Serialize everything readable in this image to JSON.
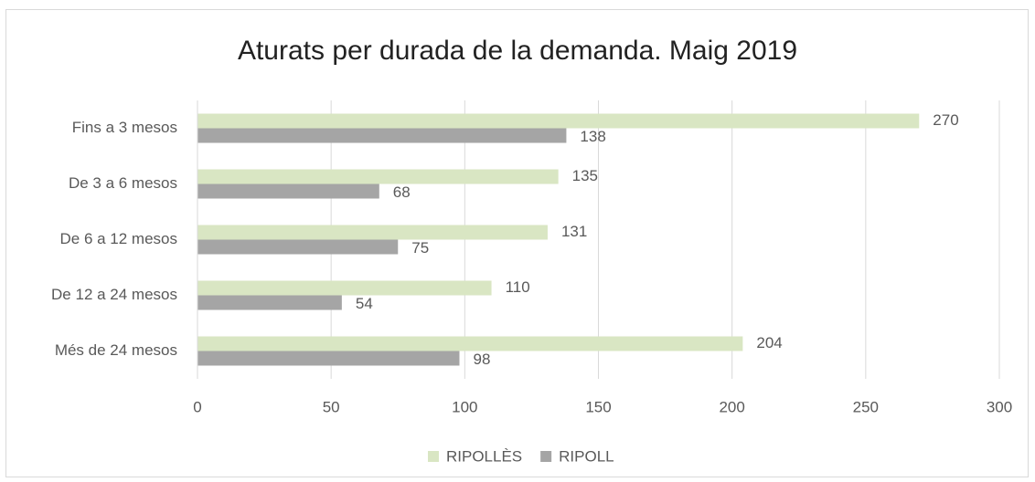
{
  "chart_data": {
    "type": "bar",
    "orientation": "horizontal",
    "title": "Aturats per durada de la demanda. Maig 2019",
    "categories": [
      "Fins a 3 mesos",
      "De 3 a 6 mesos",
      "De 6 a 12 mesos",
      "De 12 a 24 mesos",
      "Més de 24 mesos"
    ],
    "series": [
      {
        "name": "RIPOLLÈS",
        "color": "#d9e6c3",
        "values": [
          270,
          135,
          131,
          110,
          204
        ]
      },
      {
        "name": "RIPOLL",
        "color": "#a5a5a5",
        "values": [
          138,
          68,
          75,
          54,
          98
        ]
      }
    ],
    "xlim": [
      0,
      300
    ],
    "xticks": [
      0,
      50,
      100,
      150,
      200,
      250,
      300
    ],
    "grid": true,
    "legend": "bottom"
  }
}
